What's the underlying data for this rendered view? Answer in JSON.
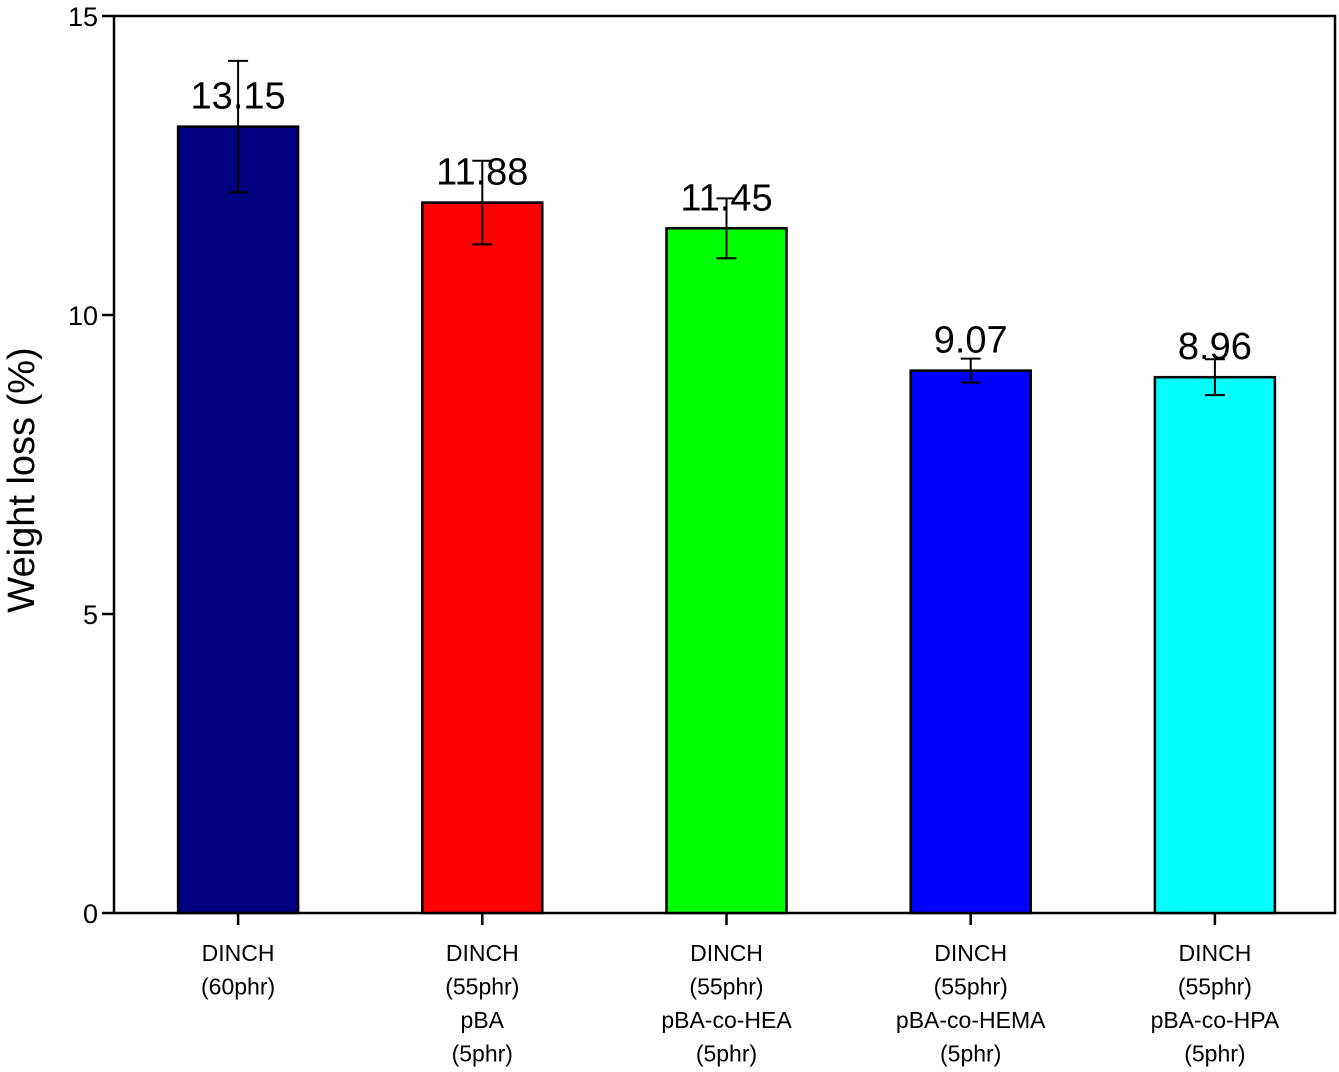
{
  "chart_data": {
    "type": "bar",
    "ylabel": "Weight loss (%)",
    "xlabel": "",
    "ylim": [
      0,
      15
    ],
    "yticks": [
      "0",
      "5",
      "10",
      "15"
    ],
    "grid": false,
    "categories": [
      [
        "DINCH",
        "(60phr)"
      ],
      [
        "DINCH",
        "(55phr)",
        "pBA",
        "(5phr)"
      ],
      [
        "DINCH",
        "(55phr)",
        "pBA-co-HEA",
        "(5phr)"
      ],
      [
        "DINCH",
        "(55phr)",
        "pBA-co-HEMA",
        "(5phr)"
      ],
      [
        "DINCH",
        "(55phr)",
        "pBA-co-HPA",
        "(5phr)"
      ]
    ],
    "values": [
      13.15,
      11.88,
      11.45,
      9.07,
      8.96
    ],
    "value_labels": [
      "13.15",
      "11.88",
      "11.45",
      "9.07",
      "8.96"
    ],
    "errors": [
      1.1,
      0.7,
      0.5,
      0.2,
      0.3
    ],
    "colors": [
      "#000080",
      "#ff0000",
      "#00ff00",
      "#0000ff",
      "#00ffff"
    ]
  }
}
